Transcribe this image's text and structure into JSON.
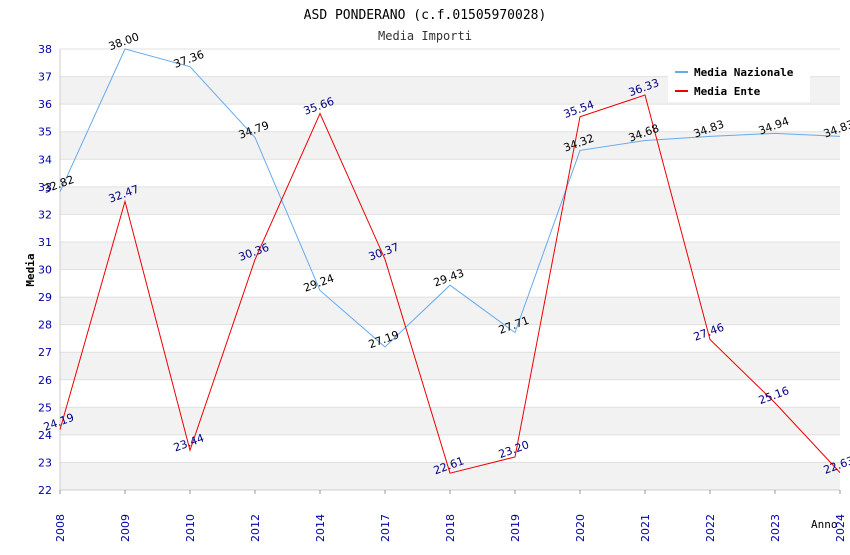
{
  "chart_data": {
    "type": "line",
    "title": "ASD PONDERANO (c.f.01505970028)",
    "subtitle": "Media Importi",
    "xlabel": "Anno",
    "ylabel": "Media",
    "categories": [
      "2008",
      "2009",
      "2010",
      "2012",
      "2014",
      "2017",
      "2018",
      "2019",
      "2020",
      "2021",
      "2022",
      "2023",
      "2024"
    ],
    "ylim": [
      22,
      38
    ],
    "yticks": [
      22,
      23,
      24,
      25,
      26,
      27,
      28,
      29,
      30,
      31,
      32,
      33,
      34,
      35,
      36,
      37,
      38
    ],
    "grid": true,
    "legend_position": "top-right",
    "series": [
      {
        "name": "Media Nazionale",
        "color": "#66aaee",
        "label_color": "#000000",
        "values": [
          32.82,
          38.0,
          37.36,
          34.79,
          29.24,
          27.19,
          29.43,
          27.71,
          34.32,
          34.68,
          34.83,
          34.94,
          34.83
        ],
        "labels": [
          "32.82",
          "38.00",
          "37.36",
          "34.79",
          "29.24",
          "27.19",
          "29.43",
          "27.71",
          "34.32",
          "34.68",
          "34.83",
          "34.94",
          "34.83"
        ]
      },
      {
        "name": "Media Ente",
        "color": "#ee0000",
        "label_color": "#000080",
        "values": [
          24.19,
          32.47,
          23.44,
          30.36,
          35.66,
          30.37,
          22.61,
          23.2,
          35.54,
          36.33,
          27.46,
          25.16,
          22.63
        ],
        "labels": [
          "24.19",
          "32.47",
          "23.44",
          "30.36",
          "35.66",
          "30.37",
          "22.61",
          "23.20",
          "35.54",
          "36.33",
          "27.46",
          "25.16",
          "22.63"
        ]
      }
    ]
  }
}
